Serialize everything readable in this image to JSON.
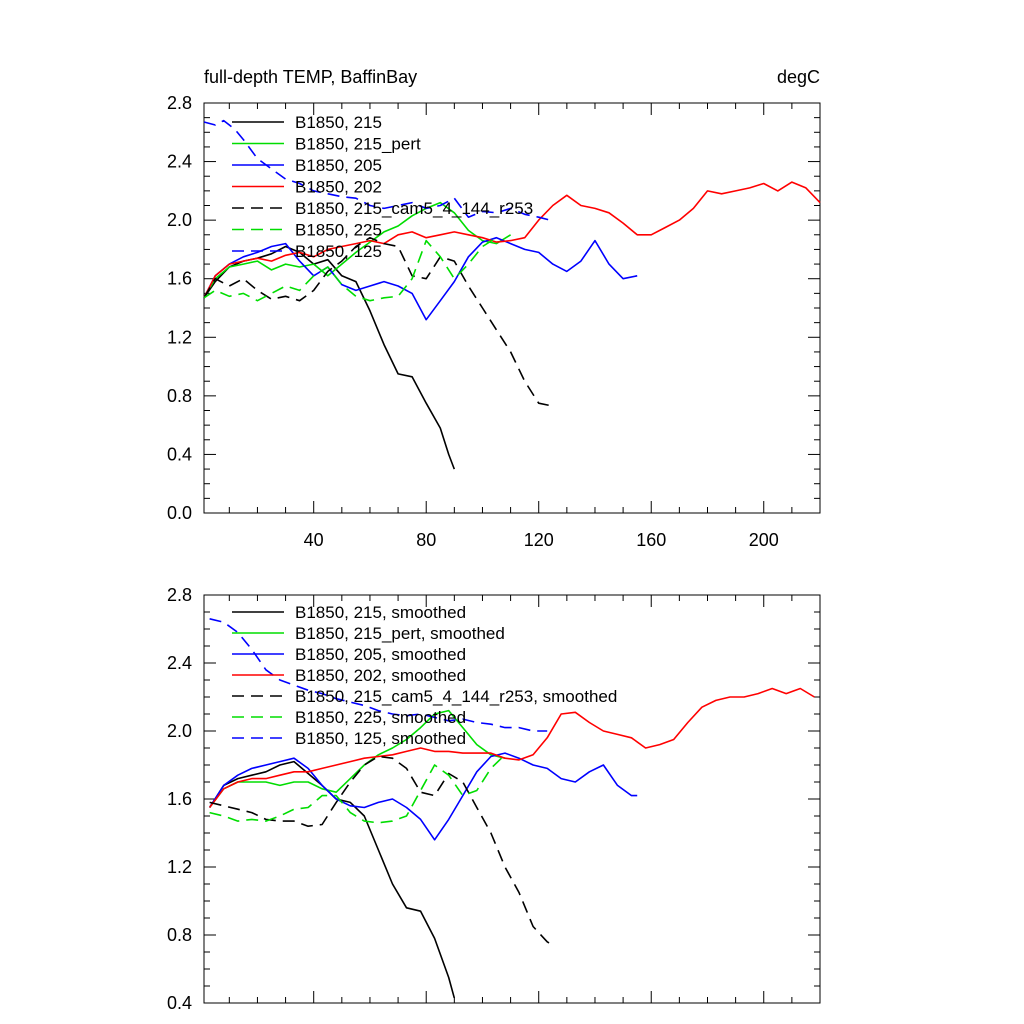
{
  "chart_data": [
    {
      "type": "line",
      "title_left": "full-depth TEMP, BaffinBay",
      "title_right": "degC",
      "xlabel": "",
      "ylabel": "",
      "xlim": [
        1,
        220
      ],
      "ylim": [
        0.0,
        2.8
      ],
      "xticks": [
        "40",
        "80",
        "120",
        "160",
        "200"
      ],
      "yticks": [
        "0.0",
        "0.4",
        "0.8",
        "1.2",
        "1.6",
        "2.0",
        "2.4",
        "2.8"
      ],
      "grid": false,
      "legend_position": "top-left",
      "series": [
        {
          "name": "B1850, 215",
          "color": "#000000",
          "dash": "solid",
          "x": [
            1,
            5,
            10,
            15,
            20,
            25,
            30,
            35,
            40,
            45,
            50,
            55,
            60,
            65,
            70,
            75,
            80,
            85,
            88,
            90
          ],
          "y": [
            1.47,
            1.58,
            1.68,
            1.72,
            1.74,
            1.77,
            1.82,
            1.78,
            1.7,
            1.73,
            1.62,
            1.58,
            1.38,
            1.15,
            0.95,
            0.93,
            0.75,
            0.58,
            0.4,
            0.3
          ]
        },
        {
          "name": "B1850, 215_pert",
          "color": "#00dd00",
          "dash": "solid",
          "x": [
            1,
            5,
            10,
            15,
            20,
            25,
            30,
            35,
            40,
            45,
            50,
            55,
            60,
            65,
            70,
            75,
            80,
            85,
            90,
            95,
            100,
            105,
            110
          ],
          "y": [
            1.47,
            1.6,
            1.68,
            1.7,
            1.72,
            1.66,
            1.7,
            1.68,
            1.7,
            1.62,
            1.7,
            1.78,
            1.85,
            1.92,
            1.96,
            2.03,
            2.08,
            2.12,
            2.05,
            1.93,
            1.86,
            1.84,
            1.9
          ]
        },
        {
          "name": "B1850, 205",
          "color": "#0000ff",
          "dash": "solid",
          "x": [
            1,
            5,
            10,
            15,
            20,
            25,
            30,
            35,
            40,
            45,
            50,
            55,
            60,
            65,
            70,
            75,
            80,
            85,
            90,
            95,
            100,
            105,
            110,
            115,
            120,
            125,
            130,
            135,
            140,
            145,
            150,
            155
          ],
          "y": [
            1.47,
            1.62,
            1.7,
            1.75,
            1.78,
            1.82,
            1.84,
            1.72,
            1.62,
            1.68,
            1.56,
            1.52,
            1.55,
            1.58,
            1.55,
            1.5,
            1.32,
            1.45,
            1.58,
            1.75,
            1.85,
            1.88,
            1.84,
            1.8,
            1.78,
            1.7,
            1.65,
            1.72,
            1.86,
            1.7,
            1.6,
            1.62
          ]
        },
        {
          "name": "B1850, 202",
          "color": "#ff0000",
          "dash": "solid",
          "x": [
            1,
            5,
            10,
            15,
            20,
            25,
            30,
            35,
            40,
            45,
            50,
            55,
            60,
            65,
            70,
            75,
            80,
            85,
            90,
            95,
            100,
            105,
            110,
            115,
            120,
            125,
            130,
            135,
            140,
            145,
            150,
            155,
            160,
            165,
            170,
            175,
            180,
            185,
            190,
            195,
            200,
            205,
            210,
            215,
            220
          ],
          "y": [
            1.47,
            1.62,
            1.7,
            1.72,
            1.74,
            1.72,
            1.76,
            1.78,
            1.75,
            1.8,
            1.82,
            1.84,
            1.86,
            1.84,
            1.9,
            1.92,
            1.88,
            1.9,
            1.92,
            1.9,
            1.88,
            1.85,
            1.86,
            1.88,
            2.0,
            2.1,
            2.17,
            2.1,
            2.08,
            2.05,
            1.98,
            1.9,
            1.9,
            1.95,
            2.0,
            2.08,
            2.2,
            2.18,
            2.2,
            2.22,
            2.25,
            2.2,
            2.26,
            2.22,
            2.12
          ]
        },
        {
          "name": "B1850, 215_cam5_4_144_r253",
          "color": "#000000",
          "dash": "dashed",
          "x": [
            1,
            5,
            10,
            15,
            20,
            25,
            30,
            35,
            40,
            45,
            50,
            55,
            60,
            65,
            70,
            75,
            80,
            85,
            90,
            95,
            100,
            105,
            110,
            115,
            120,
            125
          ],
          "y": [
            1.47,
            1.6,
            1.55,
            1.6,
            1.52,
            1.46,
            1.48,
            1.45,
            1.52,
            1.65,
            1.72,
            1.82,
            1.88,
            1.84,
            1.82,
            1.62,
            1.6,
            1.75,
            1.72,
            1.55,
            1.4,
            1.25,
            1.1,
            0.9,
            0.75,
            0.73
          ]
        },
        {
          "name": "B1850, 225",
          "color": "#00dd00",
          "dash": "dashed",
          "x": [
            1,
            5,
            10,
            15,
            20,
            25,
            30,
            35,
            40,
            45,
            50,
            55,
            60,
            65,
            70,
            75,
            80,
            85,
            90,
            95,
            100,
            105
          ],
          "y": [
            1.47,
            1.52,
            1.48,
            1.5,
            1.45,
            1.5,
            1.55,
            1.52,
            1.62,
            1.68,
            1.56,
            1.48,
            1.45,
            1.47,
            1.48,
            1.6,
            1.86,
            1.75,
            1.6,
            1.7,
            1.82,
            1.88
          ]
        },
        {
          "name": "B1850, 125",
          "color": "#0000ff",
          "dash": "dashed",
          "x": [
            1,
            5,
            8,
            12,
            15,
            20,
            25,
            30,
            35,
            40,
            45,
            50,
            55,
            60,
            65,
            70,
            75,
            80,
            85,
            90,
            95,
            100,
            105,
            110,
            115,
            120,
            124
          ],
          "y": [
            2.67,
            2.65,
            2.68,
            2.62,
            2.55,
            2.42,
            2.35,
            2.28,
            2.25,
            2.2,
            2.18,
            2.16,
            2.15,
            2.1,
            2.08,
            2.1,
            2.12,
            2.08,
            2.1,
            2.15,
            2.02,
            2.06,
            2.05,
            2.08,
            2.04,
            2.02,
            2.0
          ]
        }
      ]
    },
    {
      "type": "line",
      "title_left": "",
      "title_right": "",
      "xlabel": "",
      "ylabel": "",
      "xlim": [
        1,
        220
      ],
      "ylim": [
        0.4,
        2.8
      ],
      "xticks": [],
      "yticks": [
        "0.4",
        "0.8",
        "1.2",
        "1.6",
        "2.0",
        "2.4",
        "2.8"
      ],
      "grid": false,
      "legend_position": "top-left",
      "series": [
        {
          "name": "B1850, 215, smoothed",
          "color": "#000000",
          "dash": "solid",
          "x": [
            3,
            8,
            13,
            18,
            23,
            28,
            33,
            38,
            43,
            48,
            53,
            58,
            63,
            68,
            73,
            78,
            83,
            88,
            90
          ],
          "y": [
            1.55,
            1.68,
            1.72,
            1.74,
            1.76,
            1.8,
            1.82,
            1.75,
            1.68,
            1.6,
            1.58,
            1.5,
            1.3,
            1.1,
            0.96,
            0.94,
            0.78,
            0.55,
            0.43
          ]
        },
        {
          "name": "B1850, 215_pert, smoothed",
          "color": "#00dd00",
          "dash": "solid",
          "x": [
            3,
            8,
            13,
            18,
            23,
            28,
            33,
            38,
            43,
            48,
            53,
            58,
            63,
            68,
            73,
            78,
            83,
            88,
            93,
            98,
            103,
            108
          ],
          "y": [
            1.55,
            1.66,
            1.7,
            1.7,
            1.7,
            1.68,
            1.7,
            1.7,
            1.66,
            1.64,
            1.72,
            1.8,
            1.86,
            1.9,
            1.95,
            2.02,
            2.1,
            2.12,
            2.02,
            1.92,
            1.86,
            1.84
          ]
        },
        {
          "name": "B1850, 205, smoothed",
          "color": "#0000ff",
          "dash": "solid",
          "x": [
            3,
            8,
            13,
            18,
            23,
            28,
            33,
            38,
            43,
            48,
            53,
            58,
            63,
            68,
            73,
            78,
            83,
            88,
            93,
            98,
            103,
            108,
            113,
            118,
            123,
            128,
            133,
            138,
            143,
            148,
            153,
            155
          ],
          "y": [
            1.55,
            1.68,
            1.74,
            1.78,
            1.8,
            1.82,
            1.84,
            1.78,
            1.68,
            1.6,
            1.56,
            1.55,
            1.58,
            1.6,
            1.55,
            1.48,
            1.36,
            1.48,
            1.62,
            1.76,
            1.85,
            1.87,
            1.84,
            1.8,
            1.78,
            1.72,
            1.7,
            1.76,
            1.8,
            1.68,
            1.62,
            1.62
          ]
        },
        {
          "name": "B1850, 202, smoothed",
          "color": "#ff0000",
          "dash": "solid",
          "x": [
            3,
            8,
            13,
            18,
            23,
            28,
            33,
            38,
            43,
            48,
            53,
            58,
            63,
            68,
            73,
            78,
            83,
            88,
            93,
            98,
            103,
            108,
            113,
            118,
            123,
            128,
            133,
            138,
            143,
            148,
            153,
            158,
            163,
            168,
            173,
            178,
            183,
            188,
            193,
            198,
            203,
            208,
            213,
            218
          ],
          "y": [
            1.55,
            1.66,
            1.7,
            1.72,
            1.72,
            1.74,
            1.76,
            1.76,
            1.78,
            1.8,
            1.82,
            1.84,
            1.85,
            1.86,
            1.88,
            1.9,
            1.88,
            1.88,
            1.87,
            1.87,
            1.87,
            1.84,
            1.83,
            1.86,
            1.96,
            2.1,
            2.11,
            2.05,
            2.0,
            1.98,
            1.96,
            1.9,
            1.92,
            1.95,
            2.05,
            2.14,
            2.18,
            2.2,
            2.2,
            2.22,
            2.25,
            2.22,
            2.25,
            2.2
          ]
        },
        {
          "name": "B1850, 215_cam5_4_144_r253, smoothed",
          "color": "#000000",
          "dash": "dashed",
          "x": [
            3,
            8,
            13,
            18,
            23,
            28,
            33,
            38,
            43,
            48,
            53,
            58,
            63,
            68,
            73,
            78,
            83,
            88,
            93,
            98,
            103,
            108,
            113,
            118,
            123,
            125
          ],
          "y": [
            1.58,
            1.56,
            1.54,
            1.52,
            1.48,
            1.47,
            1.47,
            1.44,
            1.45,
            1.58,
            1.7,
            1.8,
            1.85,
            1.84,
            1.78,
            1.64,
            1.62,
            1.75,
            1.7,
            1.55,
            1.4,
            1.2,
            1.05,
            0.85,
            0.76,
            0.74
          ]
        },
        {
          "name": "B1850, 225, smoothed",
          "color": "#00dd00",
          "dash": "dashed",
          "x": [
            3,
            8,
            13,
            18,
            23,
            28,
            33,
            38,
            43,
            48,
            53,
            58,
            63,
            68,
            73,
            78,
            83,
            88,
            93,
            98,
            103,
            108
          ],
          "y": [
            1.52,
            1.5,
            1.47,
            1.48,
            1.47,
            1.5,
            1.54,
            1.55,
            1.62,
            1.62,
            1.52,
            1.47,
            1.46,
            1.47,
            1.5,
            1.65,
            1.8,
            1.74,
            1.62,
            1.65,
            1.78,
            1.86
          ]
        },
        {
          "name": "B1850, 125, smoothed",
          "color": "#0000ff",
          "dash": "dashed",
          "x": [
            3,
            8,
            13,
            18,
            23,
            28,
            33,
            38,
            43,
            48,
            53,
            58,
            63,
            68,
            73,
            78,
            83,
            88,
            93,
            98,
            103,
            108,
            113,
            118,
            123
          ],
          "y": [
            2.66,
            2.64,
            2.58,
            2.48,
            2.36,
            2.3,
            2.27,
            2.24,
            2.22,
            2.19,
            2.17,
            2.15,
            2.12,
            2.1,
            2.09,
            2.1,
            2.08,
            2.06,
            2.07,
            2.05,
            2.04,
            2.02,
            2.02,
            2.0,
            2.0
          ]
        }
      ]
    }
  ]
}
